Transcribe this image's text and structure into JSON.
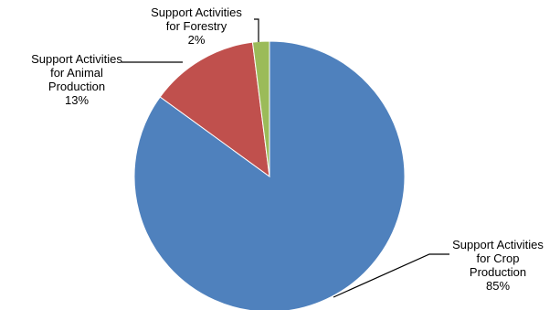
{
  "chart_data": {
    "type": "pie",
    "start_angle_deg": 90,
    "direction": "clockwise",
    "slices": [
      {
        "label": "Support Activities for Crop Production",
        "label_lines": [
          "Support Activities",
          "for Crop",
          "Production"
        ],
        "value": 85,
        "value_label": "85%",
        "color": "#4F81BD"
      },
      {
        "label": "Support Activities for Animal Production",
        "label_lines": [
          "Support Activities",
          "for Animal",
          "Production"
        ],
        "value": 13,
        "value_label": "13%",
        "color": "#C0504D"
      },
      {
        "label": "Support Activities for Forestry",
        "label_lines": [
          "Support Activities",
          "for Forestry"
        ],
        "value": 2,
        "value_label": "2%",
        "color": "#9BBB59"
      }
    ],
    "legend": "none",
    "leader_line_color": "#000000"
  }
}
